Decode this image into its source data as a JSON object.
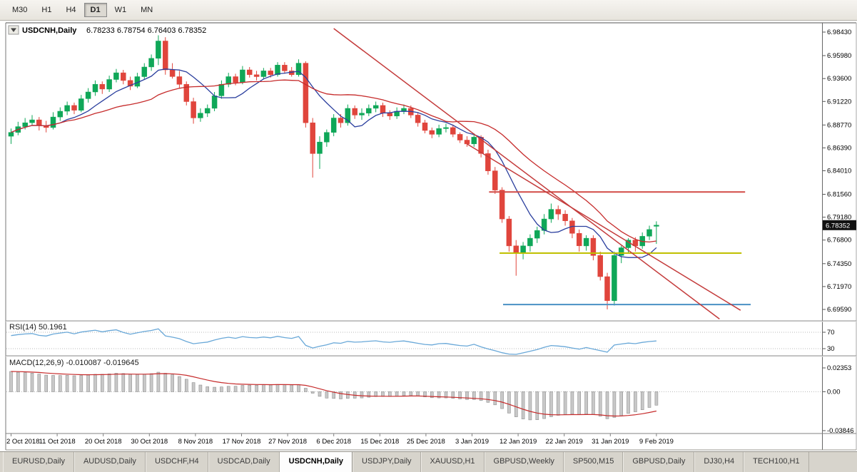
{
  "toolbar": {
    "timeframes": [
      {
        "label": "M30",
        "active": false
      },
      {
        "label": "H1",
        "active": false
      },
      {
        "label": "H4",
        "active": false
      },
      {
        "label": "D1",
        "active": true
      },
      {
        "label": "W1",
        "active": false
      },
      {
        "label": "MN",
        "active": false
      }
    ]
  },
  "chart": {
    "title_symbol": "USDCNH,Daily",
    "title_ohlc": "6.78233 6.78754 6.76403 6.78352",
    "current_price": "6.78352",
    "price_scale": [
      "6.98430",
      "6.95980",
      "6.93600",
      "6.91220",
      "6.88770",
      "6.86390",
      "6.84010",
      "6.81560",
      "6.79180",
      "6.76800",
      "6.74350",
      "6.71970",
      "6.69590"
    ],
    "dates": [
      "2 Oct 2018",
      "11 Oct 2018",
      "20 Oct 2018",
      "30 Oct 2018",
      "8 Nov 2018",
      "17 Nov 2018",
      "27 Nov 2018",
      "6 Dec 2018",
      "15 Dec 2018",
      "25 Dec 2018",
      "3 Jan 2019",
      "12 Jan 2019",
      "22 Jan 2019",
      "31 Jan 2019",
      "9 Feb 2019"
    ]
  },
  "rsi_panel": {
    "label": "RSI(14) 50.1961",
    "levels": [
      "70",
      "30"
    ]
  },
  "macd_panel": {
    "label": "MACD(12,26,9) -0.010087 -0.019645",
    "scale": [
      "0.02353",
      "0.00",
      "-0.03846"
    ]
  },
  "tabs": {
    "items": [
      {
        "label": "EURUSD,Daily",
        "active": false
      },
      {
        "label": "AUDUSD,Daily",
        "active": false
      },
      {
        "label": "USDCHF,H4",
        "active": false
      },
      {
        "label": "USDCAD,Daily",
        "active": false
      },
      {
        "label": "USDCNH,Daily",
        "active": true
      },
      {
        "label": "USDJPY,Daily",
        "active": false
      },
      {
        "label": "XAUUSD,H1",
        "active": false
      },
      {
        "label": "GBPUSD,Weekly",
        "active": false
      },
      {
        "label": "SP500,M15",
        "active": false
      },
      {
        "label": "GBPUSD,Daily",
        "active": false
      },
      {
        "label": "DJ30,H4",
        "active": false
      },
      {
        "label": "TECH100,H1",
        "active": false
      }
    ]
  },
  "chart_data": {
    "type": "candlestick",
    "symbol": "USDCNH",
    "timeframe": "Daily",
    "price_axis_range": [
      6.6855,
      6.9932
    ],
    "colors": {
      "up": "#0fa758",
      "down": "#e0453c",
      "ma_fast": "#2b3f9e",
      "ma_slow": "#c62b2b",
      "rsi": "#69a8d8",
      "macd_hist": "#c8c8c8",
      "macd_hist_edge": "#909090",
      "macd_signal": "#c62b2b",
      "hline_red": "#d24b46",
      "hline_yellow": "#c0c000",
      "hline_blue": "#4a90c4",
      "trendline": "#c43c3c",
      "badge_bg": "#111111",
      "badge_text": "#ffffff"
    },
    "candles": [
      [
        6.876,
        6.884,
        6.868,
        6.88
      ],
      [
        6.88,
        6.891,
        6.877,
        6.886
      ],
      [
        6.886,
        6.895,
        6.883,
        6.89
      ],
      [
        6.89,
        6.898,
        6.887,
        6.893
      ],
      [
        6.893,
        6.896,
        6.882,
        6.887
      ],
      [
        6.887,
        6.892,
        6.88,
        6.885
      ],
      [
        6.885,
        6.901,
        6.883,
        6.896
      ],
      [
        6.896,
        6.906,
        6.892,
        6.902
      ],
      [
        6.902,
        6.912,
        6.898,
        6.908
      ],
      [
        6.908,
        6.911,
        6.899,
        6.903
      ],
      [
        6.903,
        6.919,
        6.901,
        6.915
      ],
      [
        6.915,
        6.926,
        6.911,
        6.922
      ],
      [
        6.922,
        6.934,
        6.918,
        6.93
      ],
      [
        6.93,
        6.933,
        6.92,
        6.925
      ],
      [
        6.925,
        6.939,
        6.922,
        6.935
      ],
      [
        6.935,
        6.946,
        6.932,
        6.942
      ],
      [
        6.942,
        6.945,
        6.93,
        6.934
      ],
      [
        6.934,
        6.938,
        6.924,
        6.928
      ],
      [
        6.928,
        6.942,
        6.926,
        6.938
      ],
      [
        6.938,
        6.952,
        6.935,
        6.948
      ],
      [
        6.948,
        6.961,
        6.944,
        6.957
      ],
      [
        6.957,
        6.981,
        6.95,
        6.975
      ],
      [
        6.975,
        6.979,
        6.94,
        6.945
      ],
      [
        6.945,
        6.952,
        6.936,
        6.938
      ],
      [
        6.938,
        6.944,
        6.926,
        6.93
      ],
      [
        6.93,
        6.933,
        6.908,
        6.912
      ],
      [
        6.912,
        6.916,
        6.889,
        6.895
      ],
      [
        6.895,
        6.905,
        6.891,
        6.9
      ],
      [
        6.9,
        6.909,
        6.896,
        6.905
      ],
      [
        6.905,
        6.922,
        6.902,
        6.918
      ],
      [
        6.918,
        6.934,
        6.915,
        6.93
      ],
      [
        6.93,
        6.942,
        6.927,
        6.938
      ],
      [
        6.938,
        6.941,
        6.929,
        6.932
      ],
      [
        6.932,
        6.949,
        6.93,
        6.945
      ],
      [
        6.945,
        6.948,
        6.937,
        6.94
      ],
      [
        6.94,
        6.944,
        6.934,
        6.938
      ],
      [
        6.938,
        6.947,
        6.935,
        6.944
      ],
      [
        6.944,
        6.947,
        6.937,
        6.94
      ],
      [
        6.94,
        6.953,
        6.938,
        6.95
      ],
      [
        6.95,
        6.953,
        6.941,
        6.944
      ],
      [
        6.944,
        6.948,
        6.938,
        6.94
      ],
      [
        6.94,
        6.956,
        6.938,
        6.952
      ],
      [
        6.952,
        6.954,
        6.885,
        6.89
      ],
      [
        6.89,
        6.895,
        6.833,
        6.858
      ],
      [
        6.858,
        6.876,
        6.842,
        6.87
      ],
      [
        6.87,
        6.883,
        6.865,
        6.88
      ],
      [
        6.88,
        6.899,
        6.876,
        6.895
      ],
      [
        6.895,
        6.899,
        6.885,
        6.89
      ],
      [
        6.89,
        6.909,
        6.887,
        6.905
      ],
      [
        6.905,
        6.908,
        6.894,
        6.898
      ],
      [
        6.898,
        6.905,
        6.893,
        6.9
      ],
      [
        6.9,
        6.909,
        6.897,
        6.905
      ],
      [
        6.905,
        6.912,
        6.901,
        6.908
      ],
      [
        6.908,
        6.911,
        6.896,
        6.9
      ],
      [
        6.9,
        6.903,
        6.893,
        6.897
      ],
      [
        6.897,
        6.906,
        6.894,
        6.902
      ],
      [
        6.902,
        6.909,
        6.899,
        6.905
      ],
      [
        6.905,
        6.908,
        6.895,
        6.898
      ],
      [
        6.898,
        6.901,
        6.886,
        6.89
      ],
      [
        6.89,
        6.893,
        6.879,
        6.882
      ],
      [
        6.882,
        6.885,
        6.874,
        6.878
      ],
      [
        6.878,
        6.888,
        6.875,
        6.884
      ],
      [
        6.884,
        6.889,
        6.88,
        6.885
      ],
      [
        6.885,
        6.888,
        6.875,
        6.878
      ],
      [
        6.878,
        6.88,
        6.869,
        6.872
      ],
      [
        6.872,
        6.876,
        6.865,
        6.868
      ],
      [
        6.868,
        6.879,
        6.865,
        6.875
      ],
      [
        6.875,
        6.877,
        6.854,
        6.858
      ],
      [
        6.858,
        6.862,
        6.836,
        6.84
      ],
      [
        6.84,
        6.844,
        6.816,
        6.82
      ],
      [
        6.82,
        6.823,
        6.786,
        6.79
      ],
      [
        6.79,
        6.793,
        6.756,
        6.762
      ],
      [
        6.762,
        6.768,
        6.731,
        6.755
      ],
      [
        6.755,
        6.766,
        6.748,
        6.762
      ],
      [
        6.762,
        6.774,
        6.756,
        6.77
      ],
      [
        6.77,
        6.782,
        6.765,
        6.778
      ],
      [
        6.778,
        6.795,
        6.774,
        6.79
      ],
      [
        6.79,
        6.806,
        6.786,
        6.8
      ],
      [
        6.8,
        6.804,
        6.789,
        6.795
      ],
      [
        6.795,
        6.799,
        6.783,
        6.788
      ],
      [
        6.788,
        6.791,
        6.77,
        6.775
      ],
      [
        6.775,
        6.779,
        6.756,
        6.762
      ],
      [
        6.762,
        6.773,
        6.757,
        6.77
      ],
      [
        6.77,
        6.773,
        6.747,
        6.752
      ],
      [
        6.752,
        6.756,
        6.726,
        6.73
      ],
      [
        6.73,
        6.734,
        6.696,
        6.705
      ],
      [
        6.705,
        6.756,
        6.7,
        6.752
      ],
      [
        6.752,
        6.762,
        6.744,
        6.76
      ],
      [
        6.76,
        6.77,
        6.754,
        6.768
      ],
      [
        6.768,
        6.771,
        6.756,
        6.762
      ],
      [
        6.762,
        6.776,
        6.759,
        6.772
      ],
      [
        6.772,
        6.783,
        6.768,
        6.779
      ],
      [
        6.78233,
        6.78754,
        6.76403,
        6.78352
      ]
    ],
    "overlays": {
      "ma_fast_period": 8,
      "ma_slow_period": 21,
      "hlines": [
        {
          "price": 6.818,
          "from_index": 68.5,
          "to_index": 105.0,
          "color_key": "hline_red"
        },
        {
          "price": 6.7545,
          "from_index": 70.0,
          "to_index": 104.5,
          "color_key": "hline_yellow"
        },
        {
          "price": 6.701,
          "from_index": 70.5,
          "to_index": 105.8,
          "color_key": "hline_blue"
        }
      ],
      "trendlines": [
        {
          "from_index": 46,
          "from_price": 6.988,
          "to_index": 101,
          "to_price": 6.686
        },
        {
          "from_index": 65,
          "from_price": 6.868,
          "to_index": 104,
          "to_price": 6.695
        }
      ]
    },
    "indicators": {
      "rsi": {
        "period": 14,
        "levels": [
          70,
          30
        ]
      },
      "macd": {
        "fast": 12,
        "slow": 26,
        "signal": 9
      }
    }
  }
}
